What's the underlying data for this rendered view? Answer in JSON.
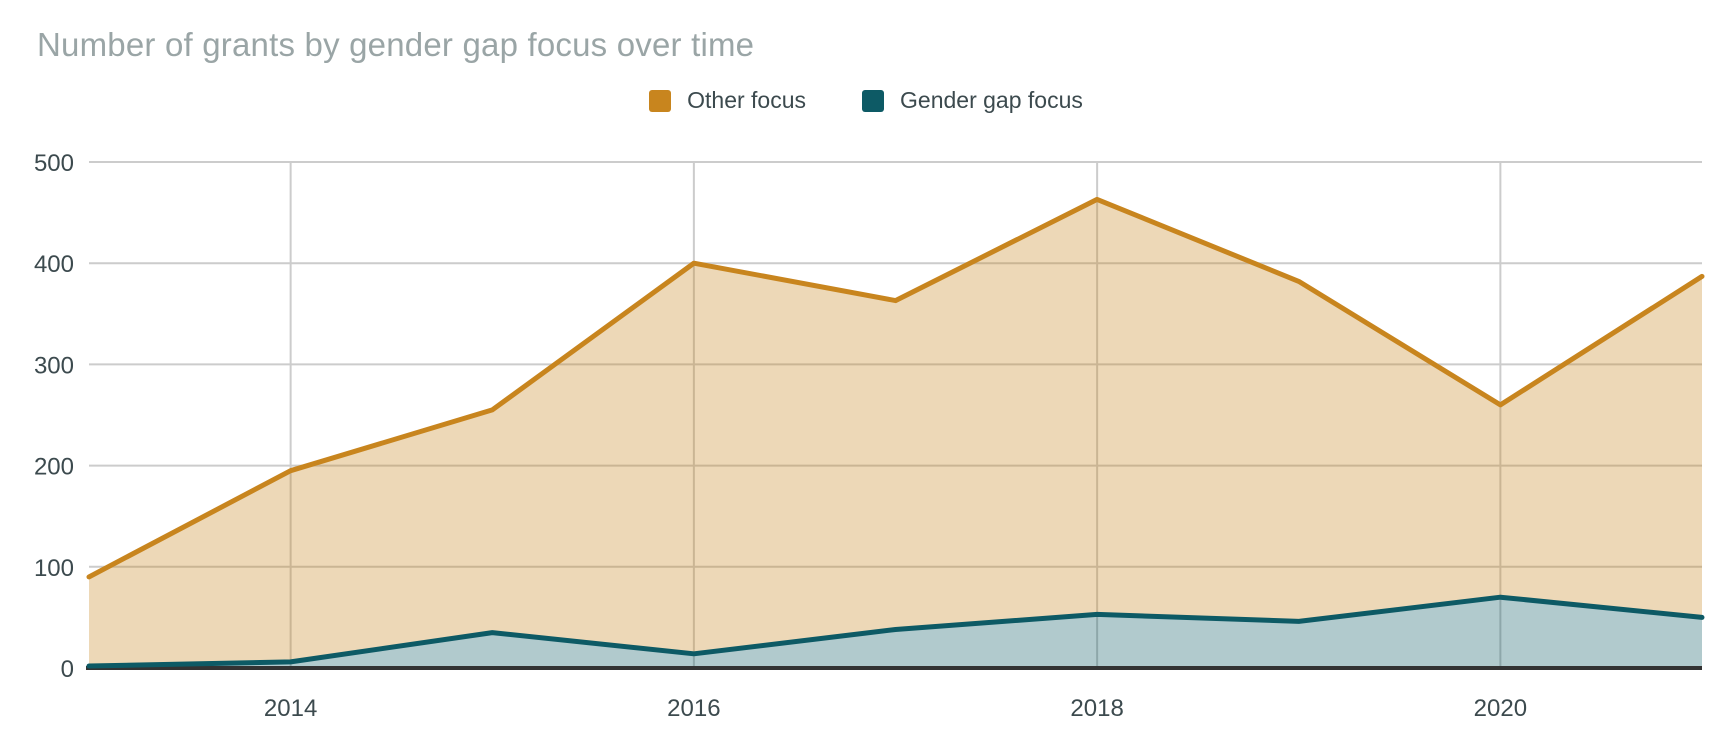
{
  "title": "Number of grants by gender gap focus over time",
  "legend": {
    "items": [
      {
        "label": "Other focus",
        "color": "#C8851E"
      },
      {
        "label": "Gender gap focus",
        "color": "#0D5A65"
      }
    ]
  },
  "chart_data": {
    "type": "area",
    "title": "Number of grants by gender gap focus over time",
    "x": [
      2013,
      2014,
      2015,
      2016,
      2017,
      2018,
      2019,
      2020,
      2021
    ],
    "series": [
      {
        "name": "Other focus",
        "line_color": "#C8851E",
        "fill_color": "rgba(200,133,30,0.32)",
        "values": [
          90,
          195,
          255,
          400,
          363,
          463,
          382,
          260,
          387
        ]
      },
      {
        "name": "Gender gap focus",
        "line_color": "#0D5A65",
        "fill_color": "rgba(13,90,101,0.32)",
        "values": [
          2,
          6,
          35,
          14,
          38,
          53,
          46,
          70,
          50
        ]
      }
    ],
    "xticks": [
      2014,
      2016,
      2018,
      2020
    ],
    "yticks": [
      0,
      100,
      200,
      300,
      400,
      500
    ],
    "ylim": [
      0,
      500
    ],
    "grid": true,
    "legend_position": "top",
    "grid_color": "#CCCCCC",
    "axis_color": "#333333",
    "tick_label_color": "#3C4A4E"
  }
}
